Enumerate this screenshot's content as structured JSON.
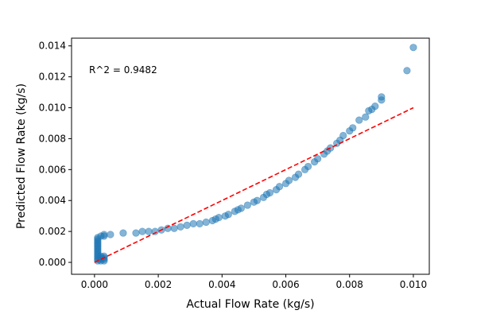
{
  "chart_data": {
    "type": "scatter",
    "xlabel": "Actual Flow Rate (kg/s)",
    "ylabel": "Predicted Flow Rate (kg/s)",
    "xlim": [
      -0.00072,
      0.0105
    ],
    "ylim": [
      -0.00077,
      0.0145
    ],
    "xticks": [
      0.0,
      0.002,
      0.004,
      0.006,
      0.008,
      0.01
    ],
    "xtick_labels": [
      "0.000",
      "0.002",
      "0.004",
      "0.006",
      "0.008",
      "0.010"
    ],
    "yticks": [
      0.0,
      0.002,
      0.004,
      0.006,
      0.008,
      0.01,
      0.012,
      0.014
    ],
    "ytick_labels": [
      "0.000",
      "0.002",
      "0.004",
      "0.006",
      "0.008",
      "0.010",
      "0.012",
      "0.014"
    ],
    "grid": false,
    "annotation": "R^2 = 0.9482",
    "marker_color": "#1f77b4",
    "marker_alpha": 0.55,
    "reference_line": {
      "style": "dashed",
      "color": "#ff0000",
      "points": [
        [
          0.0,
          0.0
        ],
        [
          0.01,
          0.01
        ]
      ]
    },
    "points": [
      {
        "x": 0.0001,
        "y": 0.0001
      },
      {
        "x": 0.0001,
        "y": 0.0002
      },
      {
        "x": 0.0001,
        "y": 0.0003
      },
      {
        "x": 0.0001,
        "y": 0.0004
      },
      {
        "x": 0.0001,
        "y": 0.0005
      },
      {
        "x": 0.0001,
        "y": 0.0006
      },
      {
        "x": 0.0001,
        "y": 0.0007
      },
      {
        "x": 0.0001,
        "y": 0.0008
      },
      {
        "x": 0.0001,
        "y": 0.0009
      },
      {
        "x": 0.0001,
        "y": 0.001
      },
      {
        "x": 0.0001,
        "y": 0.0011
      },
      {
        "x": 0.0001,
        "y": 0.0012
      },
      {
        "x": 0.0001,
        "y": 0.0013
      },
      {
        "x": 0.0001,
        "y": 0.0014
      },
      {
        "x": 0.0001,
        "y": 0.0015
      },
      {
        "x": 0.0001,
        "y": 0.0016
      },
      {
        "x": 0.0002,
        "y": 0.0001
      },
      {
        "x": 0.0002,
        "y": 0.0002
      },
      {
        "x": 0.0002,
        "y": 0.0003
      },
      {
        "x": 0.0002,
        "y": 0.0004
      },
      {
        "x": 0.0002,
        "y": 0.0017
      },
      {
        "x": 0.0003,
        "y": 0.0001
      },
      {
        "x": 0.0003,
        "y": 0.0002
      },
      {
        "x": 0.0003,
        "y": 0.0003
      },
      {
        "x": 0.0003,
        "y": 0.0004
      },
      {
        "x": 0.0003,
        "y": 0.0017
      },
      {
        "x": 0.0003,
        "y": 0.0018
      },
      {
        "x": 0.0005,
        "y": 0.0018
      },
      {
        "x": 0.0009,
        "y": 0.0019
      },
      {
        "x": 0.0013,
        "y": 0.0019
      },
      {
        "x": 0.0015,
        "y": 0.002
      },
      {
        "x": 0.0017,
        "y": 0.002
      },
      {
        "x": 0.0019,
        "y": 0.002
      },
      {
        "x": 0.0021,
        "y": 0.0021
      },
      {
        "x": 0.0023,
        "y": 0.0022
      },
      {
        "x": 0.0025,
        "y": 0.0022
      },
      {
        "x": 0.0027,
        "y": 0.0023
      },
      {
        "x": 0.0029,
        "y": 0.0024
      },
      {
        "x": 0.0031,
        "y": 0.0025
      },
      {
        "x": 0.0033,
        "y": 0.0025
      },
      {
        "x": 0.0035,
        "y": 0.0026
      },
      {
        "x": 0.0037,
        "y": 0.0027
      },
      {
        "x": 0.0038,
        "y": 0.0028
      },
      {
        "x": 0.0039,
        "y": 0.0029
      },
      {
        "x": 0.0041,
        "y": 0.003
      },
      {
        "x": 0.0042,
        "y": 0.0031
      },
      {
        "x": 0.0044,
        "y": 0.0033
      },
      {
        "x": 0.0045,
        "y": 0.0034
      },
      {
        "x": 0.0046,
        "y": 0.0035
      },
      {
        "x": 0.0048,
        "y": 0.0037
      },
      {
        "x": 0.005,
        "y": 0.0039
      },
      {
        "x": 0.0051,
        "y": 0.004
      },
      {
        "x": 0.0053,
        "y": 0.0042
      },
      {
        "x": 0.0054,
        "y": 0.0044
      },
      {
        "x": 0.0055,
        "y": 0.0045
      },
      {
        "x": 0.0057,
        "y": 0.0047
      },
      {
        "x": 0.0058,
        "y": 0.0049
      },
      {
        "x": 0.006,
        "y": 0.0051
      },
      {
        "x": 0.0061,
        "y": 0.0053
      },
      {
        "x": 0.0063,
        "y": 0.0055
      },
      {
        "x": 0.0064,
        "y": 0.0057
      },
      {
        "x": 0.0066,
        "y": 0.006
      },
      {
        "x": 0.0067,
        "y": 0.0062
      },
      {
        "x": 0.0069,
        "y": 0.0065
      },
      {
        "x": 0.007,
        "y": 0.0067
      },
      {
        "x": 0.0072,
        "y": 0.007
      },
      {
        "x": 0.0073,
        "y": 0.0072
      },
      {
        "x": 0.0074,
        "y": 0.0074
      },
      {
        "x": 0.0076,
        "y": 0.0077
      },
      {
        "x": 0.0077,
        "y": 0.0079
      },
      {
        "x": 0.0078,
        "y": 0.0082
      },
      {
        "x": 0.008,
        "y": 0.0085
      },
      {
        "x": 0.0081,
        "y": 0.0087
      },
      {
        "x": 0.0083,
        "y": 0.0092
      },
      {
        "x": 0.0085,
        "y": 0.0094
      },
      {
        "x": 0.0086,
        "y": 0.0098
      },
      {
        "x": 0.0087,
        "y": 0.0099
      },
      {
        "x": 0.0088,
        "y": 0.0101
      },
      {
        "x": 0.009,
        "y": 0.0105
      },
      {
        "x": 0.009,
        "y": 0.0107
      },
      {
        "x": 0.0098,
        "y": 0.0124
      },
      {
        "x": 0.01,
        "y": 0.0139
      }
    ]
  }
}
